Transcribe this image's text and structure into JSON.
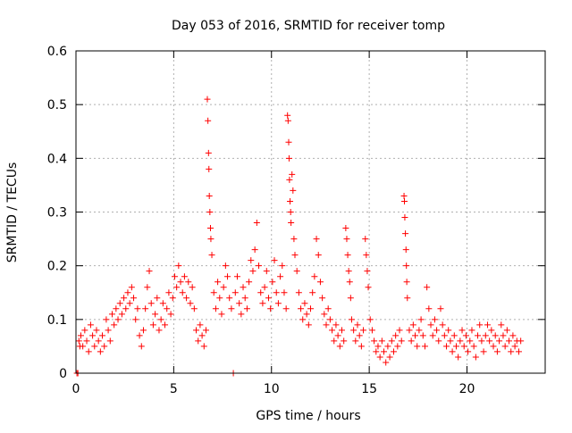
{
  "chart_data": {
    "type": "scatter",
    "title": "Day 053 of 2016, SRMTID for receiver tomp",
    "xlabel": "GPS time / hours",
    "ylabel": "SRMTID / TECUs",
    "xlim": [
      0,
      24
    ],
    "ylim": [
      0,
      0.6
    ],
    "x_ticks": [
      {
        "value": 0,
        "label": "0"
      },
      {
        "value": 5,
        "label": "5"
      },
      {
        "value": 10,
        "label": "10"
      },
      {
        "value": 15,
        "label": "15"
      },
      {
        "value": 20,
        "label": "20"
      }
    ],
    "y_ticks": [
      {
        "value": 0,
        "label": "0"
      },
      {
        "value": 0.1,
        "label": "0.1"
      },
      {
        "value": 0.2,
        "label": "0.2"
      },
      {
        "value": 0.3,
        "label": "0.3"
      },
      {
        "value": 0.4,
        "label": "0.4"
      },
      {
        "value": 0.5,
        "label": "0.5"
      },
      {
        "value": 0.6,
        "label": "0.6"
      }
    ],
    "grid": true,
    "marker": "+",
    "series": [
      {
        "name": "SRMTID",
        "color": "#ff0000",
        "points": [
          [
            0.05,
            0.0
          ],
          [
            0.1,
            0.0
          ],
          [
            0.15,
            0.06
          ],
          [
            0.2,
            0.05
          ],
          [
            0.25,
            0.07
          ],
          [
            0.35,
            0.05
          ],
          [
            0.45,
            0.08
          ],
          [
            0.55,
            0.06
          ],
          [
            0.65,
            0.04
          ],
          [
            0.75,
            0.09
          ],
          [
            0.85,
            0.07
          ],
          [
            0.95,
            0.05
          ],
          [
            1.05,
            0.08
          ],
          [
            1.15,
            0.06
          ],
          [
            1.25,
            0.04
          ],
          [
            1.35,
            0.07
          ],
          [
            1.45,
            0.05
          ],
          [
            1.55,
            0.1
          ],
          [
            1.65,
            0.08
          ],
          [
            1.75,
            0.06
          ],
          [
            1.85,
            0.11
          ],
          [
            1.95,
            0.09
          ],
          [
            2.05,
            0.12
          ],
          [
            2.15,
            0.1
          ],
          [
            2.25,
            0.13
          ],
          [
            2.35,
            0.11
          ],
          [
            2.45,
            0.14
          ],
          [
            2.55,
            0.12
          ],
          [
            2.65,
            0.15
          ],
          [
            2.75,
            0.13
          ],
          [
            2.85,
            0.16
          ],
          [
            2.95,
            0.14
          ],
          [
            3.05,
            0.1
          ],
          [
            3.15,
            0.12
          ],
          [
            3.25,
            0.07
          ],
          [
            3.35,
            0.05
          ],
          [
            3.45,
            0.08
          ],
          [
            3.55,
            0.12
          ],
          [
            3.65,
            0.16
          ],
          [
            3.75,
            0.19
          ],
          [
            3.85,
            0.13
          ],
          [
            3.95,
            0.09
          ],
          [
            4.05,
            0.11
          ],
          [
            4.15,
            0.14
          ],
          [
            4.25,
            0.08
          ],
          [
            4.35,
            0.1
          ],
          [
            4.45,
            0.13
          ],
          [
            4.55,
            0.09
          ],
          [
            4.65,
            0.12
          ],
          [
            4.75,
            0.15
          ],
          [
            4.85,
            0.11
          ],
          [
            4.95,
            0.14
          ],
          [
            5.05,
            0.18
          ],
          [
            5.15,
            0.16
          ],
          [
            5.25,
            0.2
          ],
          [
            5.35,
            0.17
          ],
          [
            5.45,
            0.15
          ],
          [
            5.55,
            0.18
          ],
          [
            5.65,
            0.14
          ],
          [
            5.75,
            0.17
          ],
          [
            5.85,
            0.13
          ],
          [
            5.95,
            0.16
          ],
          [
            6.05,
            0.12
          ],
          [
            6.15,
            0.08
          ],
          [
            6.25,
            0.06
          ],
          [
            6.35,
            0.09
          ],
          [
            6.45,
            0.07
          ],
          [
            6.55,
            0.05
          ],
          [
            6.65,
            0.08
          ],
          [
            6.72,
            0.51
          ],
          [
            6.75,
            0.47
          ],
          [
            6.78,
            0.41
          ],
          [
            6.8,
            0.38
          ],
          [
            6.82,
            0.33
          ],
          [
            6.85,
            0.3
          ],
          [
            6.88,
            0.27
          ],
          [
            6.9,
            0.25
          ],
          [
            6.95,
            0.22
          ],
          [
            7.05,
            0.15
          ],
          [
            7.15,
            0.12
          ],
          [
            7.25,
            0.17
          ],
          [
            7.35,
            0.14
          ],
          [
            7.45,
            0.11
          ],
          [
            7.55,
            0.16
          ],
          [
            7.65,
            0.2
          ],
          [
            7.75,
            0.18
          ],
          [
            7.85,
            0.14
          ],
          [
            7.95,
            0.12
          ],
          [
            8.05,
            0.0
          ],
          [
            8.15,
            0.15
          ],
          [
            8.25,
            0.18
          ],
          [
            8.35,
            0.13
          ],
          [
            8.45,
            0.11
          ],
          [
            8.55,
            0.16
          ],
          [
            8.65,
            0.14
          ],
          [
            8.75,
            0.12
          ],
          [
            8.85,
            0.17
          ],
          [
            8.95,
            0.21
          ],
          [
            9.05,
            0.19
          ],
          [
            9.15,
            0.23
          ],
          [
            9.25,
            0.28
          ],
          [
            9.35,
            0.2
          ],
          [
            9.45,
            0.15
          ],
          [
            9.55,
            0.13
          ],
          [
            9.65,
            0.16
          ],
          [
            9.75,
            0.19
          ],
          [
            9.85,
            0.14
          ],
          [
            9.95,
            0.12
          ],
          [
            10.05,
            0.17
          ],
          [
            10.15,
            0.21
          ],
          [
            10.25,
            0.15
          ],
          [
            10.35,
            0.13
          ],
          [
            10.45,
            0.18
          ],
          [
            10.55,
            0.2
          ],
          [
            10.65,
            0.15
          ],
          [
            10.75,
            0.12
          ],
          [
            10.82,
            0.48
          ],
          [
            10.85,
            0.47
          ],
          [
            10.88,
            0.43
          ],
          [
            10.9,
            0.4
          ],
          [
            10.92,
            0.36
          ],
          [
            10.95,
            0.32
          ],
          [
            10.98,
            0.3
          ],
          [
            11.0,
            0.28
          ],
          [
            11.05,
            0.37
          ],
          [
            11.1,
            0.34
          ],
          [
            11.15,
            0.25
          ],
          [
            11.2,
            0.22
          ],
          [
            11.3,
            0.19
          ],
          [
            11.4,
            0.15
          ],
          [
            11.5,
            0.12
          ],
          [
            11.6,
            0.1
          ],
          [
            11.7,
            0.13
          ],
          [
            11.8,
            0.11
          ],
          [
            11.9,
            0.09
          ],
          [
            12.0,
            0.12
          ],
          [
            12.1,
            0.15
          ],
          [
            12.2,
            0.18
          ],
          [
            12.3,
            0.25
          ],
          [
            12.4,
            0.22
          ],
          [
            12.5,
            0.17
          ],
          [
            12.6,
            0.14
          ],
          [
            12.7,
            0.11
          ],
          [
            12.8,
            0.09
          ],
          [
            12.9,
            0.12
          ],
          [
            13.0,
            0.1
          ],
          [
            13.1,
            0.08
          ],
          [
            13.2,
            0.06
          ],
          [
            13.3,
            0.09
          ],
          [
            13.4,
            0.07
          ],
          [
            13.5,
            0.05
          ],
          [
            13.6,
            0.08
          ],
          [
            13.7,
            0.06
          ],
          [
            13.8,
            0.27
          ],
          [
            13.85,
            0.25
          ],
          [
            13.9,
            0.22
          ],
          [
            13.95,
            0.19
          ],
          [
            14.0,
            0.17
          ],
          [
            14.05,
            0.14
          ],
          [
            14.1,
            0.1
          ],
          [
            14.2,
            0.08
          ],
          [
            14.3,
            0.06
          ],
          [
            14.4,
            0.09
          ],
          [
            14.5,
            0.07
          ],
          [
            14.6,
            0.05
          ],
          [
            14.7,
            0.08
          ],
          [
            14.8,
            0.25
          ],
          [
            14.85,
            0.22
          ],
          [
            14.9,
            0.19
          ],
          [
            14.95,
            0.16
          ],
          [
            15.05,
            0.1
          ],
          [
            15.15,
            0.08
          ],
          [
            15.25,
            0.06
          ],
          [
            15.35,
            0.04
          ],
          [
            15.45,
            0.05
          ],
          [
            15.55,
            0.03
          ],
          [
            15.65,
            0.06
          ],
          [
            15.75,
            0.04
          ],
          [
            15.85,
            0.02
          ],
          [
            15.95,
            0.05
          ],
          [
            16.05,
            0.03
          ],
          [
            16.15,
            0.06
          ],
          [
            16.25,
            0.04
          ],
          [
            16.35,
            0.07
          ],
          [
            16.45,
            0.05
          ],
          [
            16.55,
            0.08
          ],
          [
            16.65,
            0.06
          ],
          [
            16.78,
            0.33
          ],
          [
            16.8,
            0.32
          ],
          [
            16.82,
            0.29
          ],
          [
            16.85,
            0.26
          ],
          [
            16.88,
            0.23
          ],
          [
            16.9,
            0.2
          ],
          [
            16.92,
            0.17
          ],
          [
            16.95,
            0.14
          ],
          [
            17.05,
            0.08
          ],
          [
            17.15,
            0.06
          ],
          [
            17.25,
            0.09
          ],
          [
            17.35,
            0.07
          ],
          [
            17.45,
            0.05
          ],
          [
            17.55,
            0.08
          ],
          [
            17.65,
            0.1
          ],
          [
            17.75,
            0.07
          ],
          [
            17.85,
            0.05
          ],
          [
            17.95,
            0.16
          ],
          [
            18.05,
            0.12
          ],
          [
            18.15,
            0.09
          ],
          [
            18.25,
            0.07
          ],
          [
            18.35,
            0.1
          ],
          [
            18.45,
            0.08
          ],
          [
            18.55,
            0.06
          ],
          [
            18.65,
            0.12
          ],
          [
            18.75,
            0.09
          ],
          [
            18.85,
            0.07
          ],
          [
            18.95,
            0.05
          ],
          [
            19.05,
            0.08
          ],
          [
            19.15,
            0.06
          ],
          [
            19.25,
            0.04
          ],
          [
            19.35,
            0.07
          ],
          [
            19.45,
            0.05
          ],
          [
            19.55,
            0.03
          ],
          [
            19.65,
            0.06
          ],
          [
            19.75,
            0.08
          ],
          [
            19.85,
            0.05
          ],
          [
            19.95,
            0.07
          ],
          [
            20.05,
            0.04
          ],
          [
            20.15,
            0.06
          ],
          [
            20.25,
            0.08
          ],
          [
            20.35,
            0.05
          ],
          [
            20.45,
            0.03
          ],
          [
            20.55,
            0.07
          ],
          [
            20.65,
            0.09
          ],
          [
            20.75,
            0.06
          ],
          [
            20.85,
            0.04
          ],
          [
            20.95,
            0.07
          ],
          [
            21.05,
            0.09
          ],
          [
            21.15,
            0.06
          ],
          [
            21.25,
            0.08
          ],
          [
            21.35,
            0.05
          ],
          [
            21.45,
            0.07
          ],
          [
            21.55,
            0.04
          ],
          [
            21.65,
            0.06
          ],
          [
            21.75,
            0.09
          ],
          [
            21.85,
            0.07
          ],
          [
            21.95,
            0.05
          ],
          [
            22.05,
            0.08
          ],
          [
            22.15,
            0.06
          ],
          [
            22.25,
            0.04
          ],
          [
            22.35,
            0.07
          ],
          [
            22.45,
            0.05
          ],
          [
            22.55,
            0.06
          ],
          [
            22.65,
            0.04
          ],
          [
            22.75,
            0.06
          ]
        ]
      }
    ]
  }
}
